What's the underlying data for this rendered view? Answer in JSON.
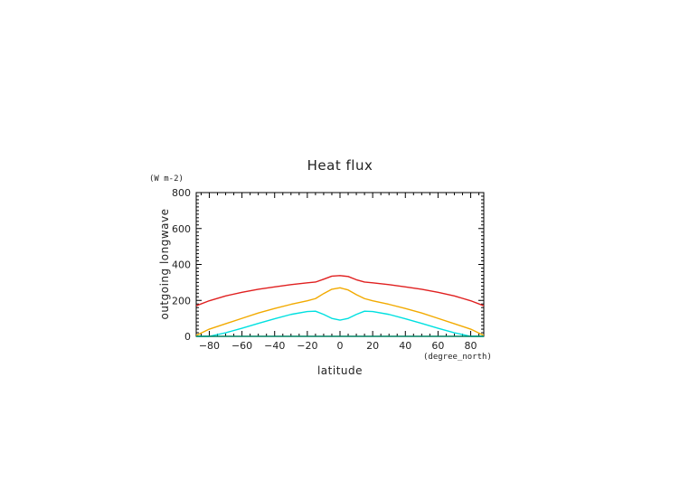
{
  "chart_data": {
    "type": "line",
    "title": "Heat flux",
    "xlabel": "latitude",
    "xunit": "(degree_north)",
    "ylabel": "outgoing longwave",
    "yunit": "(W m-2)",
    "xlim": [
      -88,
      88
    ],
    "ylim": [
      0,
      800
    ],
    "xticks": [
      -80,
      -60,
      -40,
      -20,
      0,
      20,
      40,
      60,
      80
    ],
    "yticks": [
      0,
      200,
      400,
      600,
      800
    ],
    "grid": false,
    "series": [
      {
        "color": "#e02020",
        "x": [
          -88,
          -80,
          -70,
          -60,
          -50,
          -40,
          -30,
          -20,
          -15,
          -10,
          -5,
          0,
          5,
          10,
          15,
          20,
          30,
          40,
          50,
          60,
          70,
          80,
          88
        ],
        "y": [
          170,
          198,
          225,
          245,
          262,
          275,
          288,
          298,
          302,
          318,
          335,
          338,
          333,
          315,
          302,
          298,
          288,
          275,
          262,
          245,
          225,
          198,
          170
        ]
      },
      {
        "color": "#f2aa00",
        "x": [
          -88,
          -80,
          -70,
          -60,
          -50,
          -40,
          -30,
          -20,
          -15,
          -10,
          -5,
          0,
          5,
          10,
          15,
          20,
          30,
          40,
          50,
          60,
          70,
          80,
          88
        ],
        "y": [
          5,
          40,
          70,
          100,
          130,
          155,
          178,
          198,
          210,
          238,
          262,
          270,
          258,
          232,
          210,
          198,
          178,
          155,
          130,
          100,
          70,
          40,
          5
        ]
      },
      {
        "color": "#00e0e0",
        "x": [
          -88,
          -80,
          -70,
          -60,
          -50,
          -40,
          -30,
          -20,
          -15,
          -10,
          -5,
          0,
          5,
          10,
          15,
          20,
          30,
          40,
          50,
          60,
          70,
          80,
          88
        ],
        "y": [
          0,
          0,
          20,
          45,
          72,
          98,
          122,
          138,
          140,
          122,
          100,
          90,
          100,
          122,
          140,
          138,
          122,
          98,
          72,
          45,
          20,
          0,
          0
        ]
      },
      {
        "color": "#008060",
        "x": [
          -88,
          -60,
          -30,
          0,
          30,
          60,
          88
        ],
        "y": [
          0,
          0,
          0,
          0,
          0,
          0,
          0
        ]
      }
    ]
  }
}
